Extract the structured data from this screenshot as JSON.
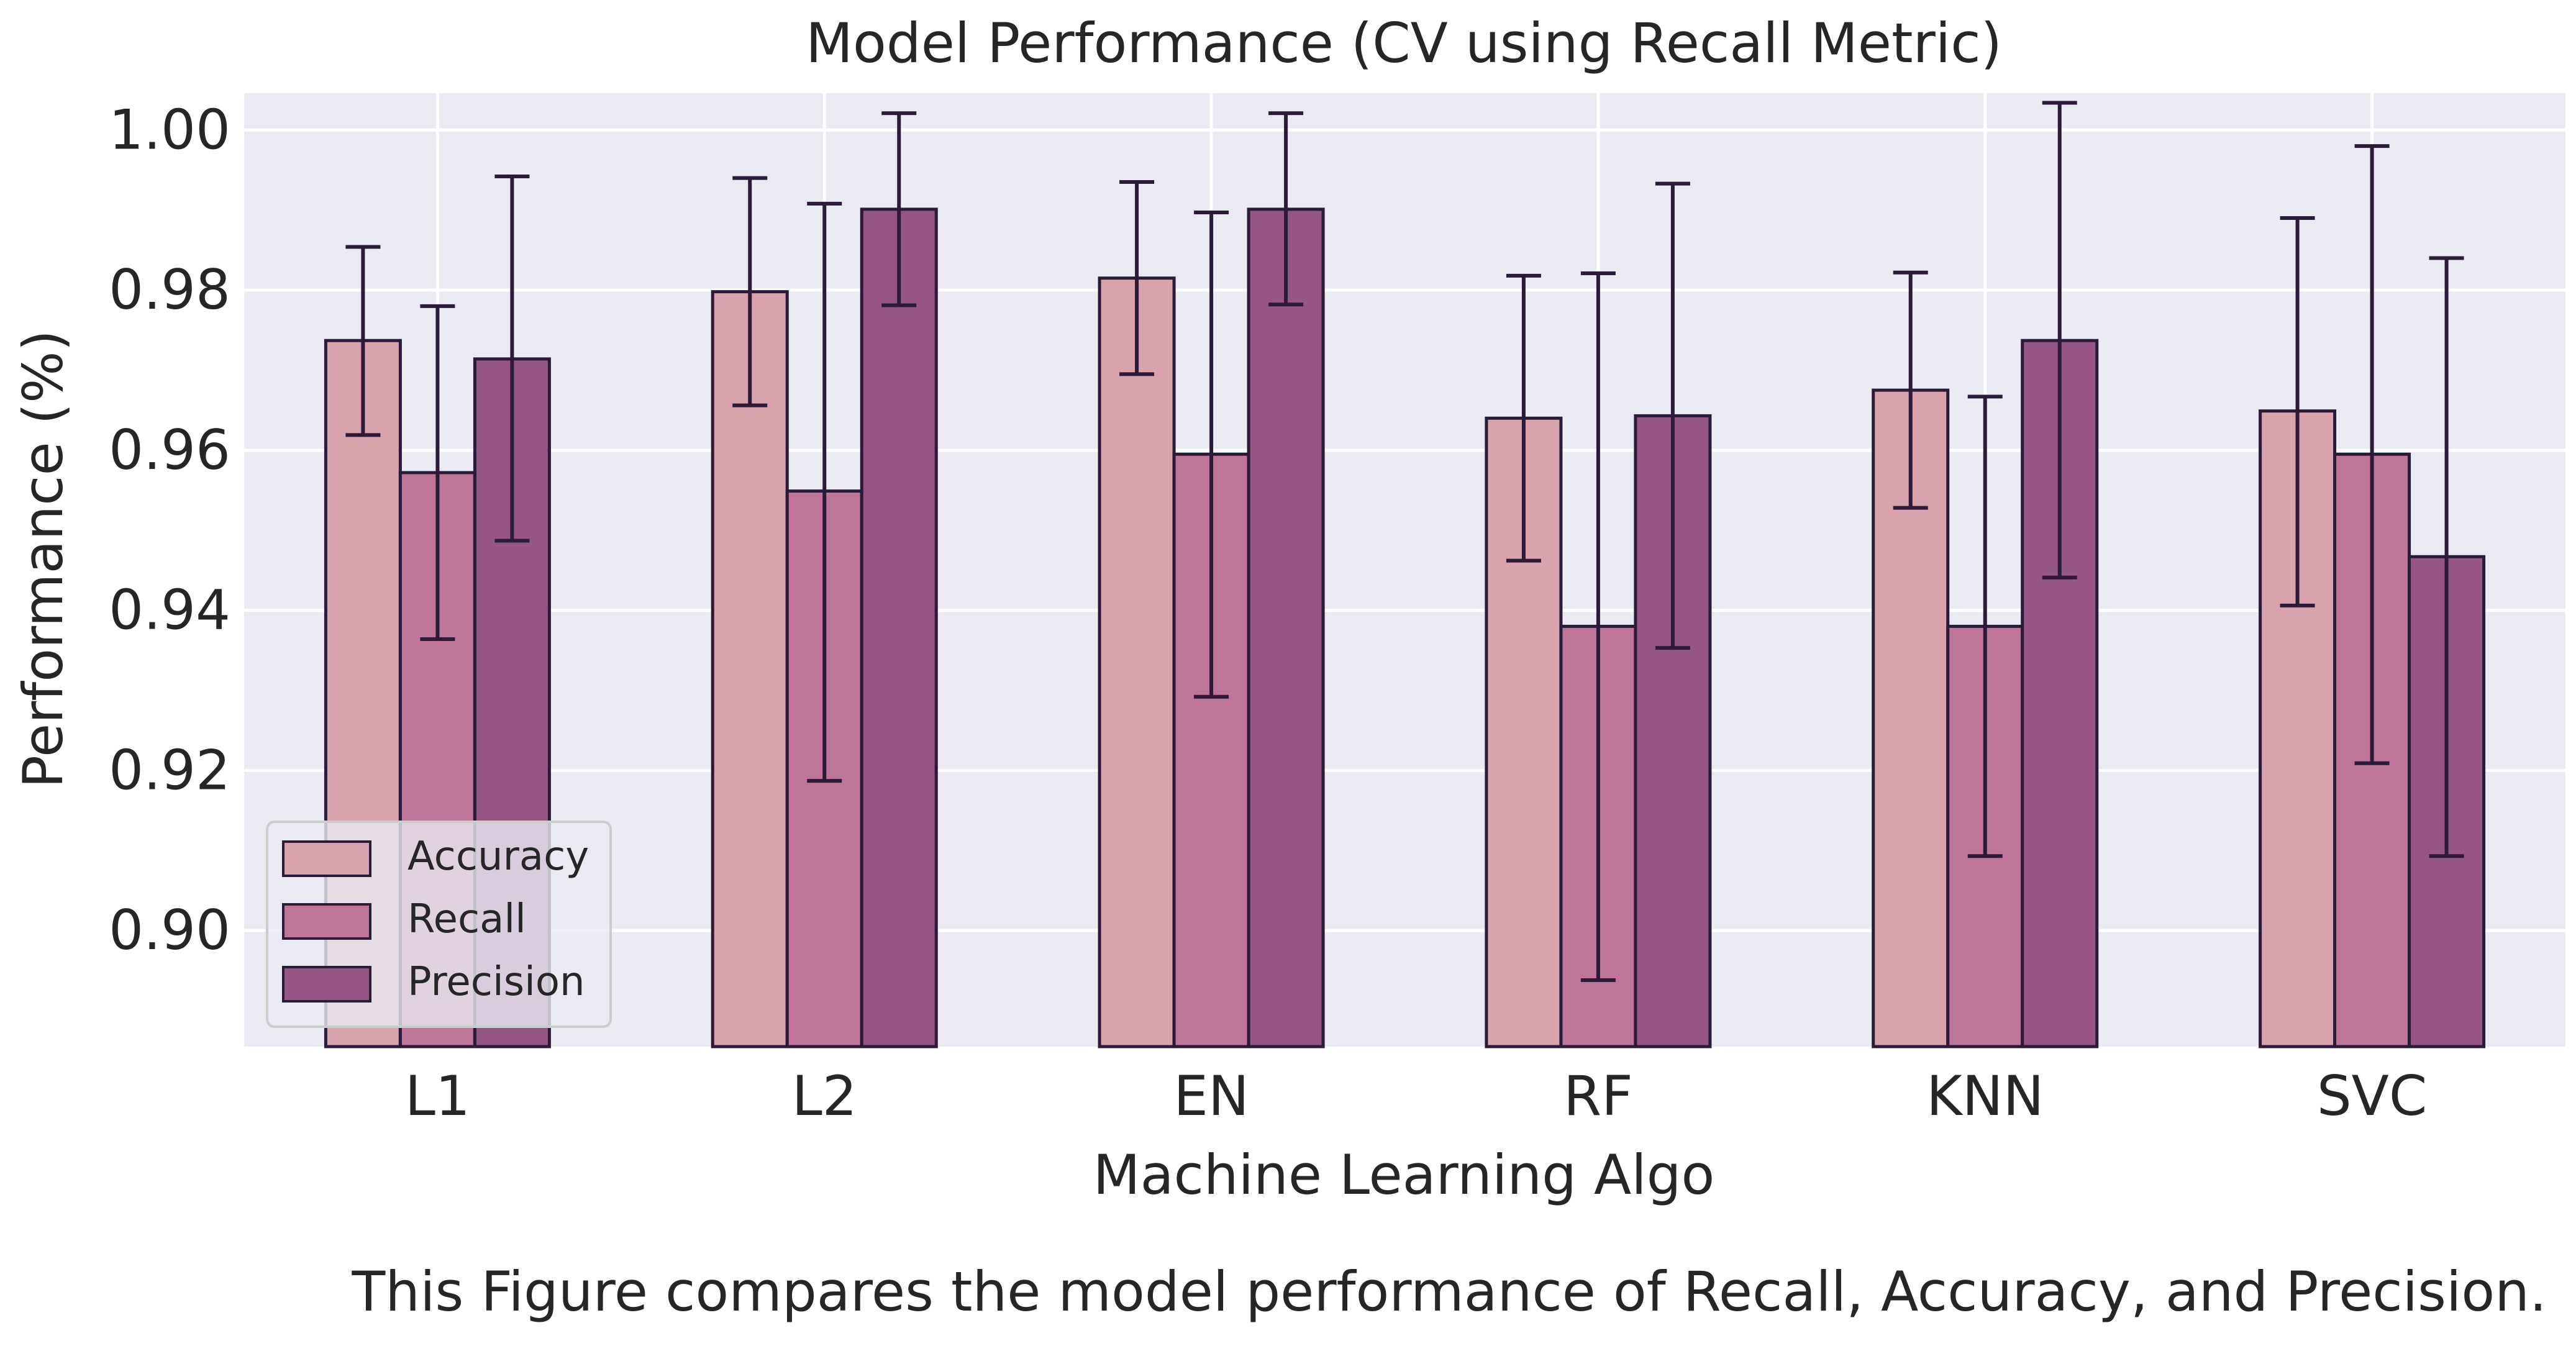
{
  "chart_data": {
    "type": "bar",
    "title": "Model Performance (CV using Recall Metric)",
    "xlabel": "Machine Learning Algo",
    "ylabel": "Performance (%)",
    "categories": [
      "L1",
      "L2",
      "EN",
      "RF",
      "KNN",
      "SVC"
    ],
    "series": [
      {
        "name": "Accuracy",
        "color": "#d8a3ac",
        "values": [
          0.9737,
          0.9798,
          0.9815,
          0.964,
          0.9675,
          0.9649
        ],
        "err_low": [
          0.9619,
          0.9656,
          0.9695,
          0.9462,
          0.9528,
          0.9406
        ],
        "err_high": [
          0.9854,
          0.994,
          0.9935,
          0.9818,
          0.9822,
          0.989
        ]
      },
      {
        "name": "Recall",
        "color": "#be7598",
        "values": [
          0.9572,
          0.9549,
          0.9595,
          0.938,
          0.938,
          0.9595
        ],
        "err_low": [
          0.9364,
          0.9187,
          0.9292,
          0.8938,
          0.9093,
          0.9209
        ],
        "err_high": [
          0.978,
          0.9908,
          0.9897,
          0.9821,
          0.9667,
          0.998
        ]
      },
      {
        "name": "Precision",
        "color": "#955684",
        "values": [
          0.9714,
          0.9901,
          0.9901,
          0.9643,
          0.9737,
          0.9467
        ],
        "err_low": [
          0.9487,
          0.9781,
          0.9782,
          0.9353,
          0.9441,
          0.9093
        ],
        "err_high": [
          0.9942,
          1.0021,
          1.0021,
          0.9933,
          1.0034,
          0.984
        ]
      }
    ],
    "ylim": [
      0.8855,
      1.0046
    ],
    "yticks": [
      "0.90",
      "0.92",
      "0.94",
      "0.96",
      "0.98",
      "1.00"
    ],
    "ytick_values": [
      0.9,
      0.92,
      0.94,
      0.96,
      0.98,
      1.0
    ],
    "grid": true,
    "legend_position": "lower-left",
    "colors": {
      "plot_background": "#eaeaf2",
      "grid": "#ffffff",
      "bar_edge": "#2b1a38",
      "error_bar": "#2b1a38",
      "text": "#262626"
    }
  },
  "caption": "This Figure compares the model performance of Recall, Accuracy, and Precision."
}
